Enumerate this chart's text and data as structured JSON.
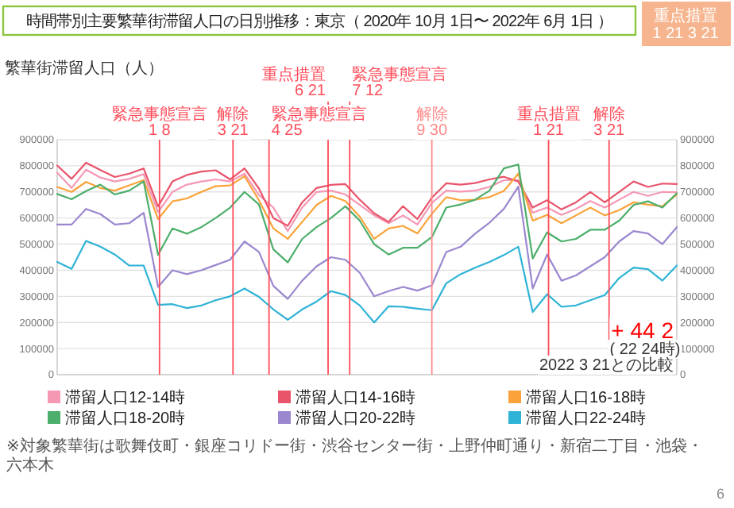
{
  "chart_data": {
    "type": "line",
    "title": "時間帯別主要繁華街滞留人口の日別推移：東京（ 2020年 10月 1日〜 2022年 6月 1日 ）",
    "ylabel": "繁華街滞留人口（人）",
    "categories": [
      null,
      null,
      null,
      null,
      null,
      null,
      null,
      null,
      null,
      null,
      null,
      null,
      null,
      null,
      null,
      null,
      null,
      null,
      null,
      null,
      null,
      null,
      null,
      null,
      null,
      null,
      null,
      null,
      null,
      null,
      null,
      null,
      null,
      null,
      null,
      null,
      null,
      null,
      null,
      null,
      null,
      null,
      null,
      null
    ],
    "ylim": [
      0,
      900000
    ],
    "yticks": [
      0,
      100000,
      200000,
      300000,
      400000,
      500000,
      600000,
      700000,
      800000,
      900000
    ],
    "y2lim": [
      0,
      900000
    ],
    "y2ticks": [
      0,
      100000,
      200000,
      300000,
      400000,
      500000,
      600000,
      700000,
      800000,
      900000
    ],
    "series": [
      {
        "name": "滞留人口12-14時",
        "color": "#f598b4",
        "values": [
          774000,
          715000,
          785000,
          755000,
          740000,
          750000,
          768000,
          623000,
          700000,
          728000,
          740000,
          748000,
          740000,
          770000,
          688000,
          640000,
          550000,
          640000,
          700000,
          705000,
          690000,
          650000,
          610000,
          580000,
          610000,
          575000,
          658000,
          705000,
          701000,
          705000,
          719000,
          745000,
          745000,
          620000,
          640000,
          612000,
          635000,
          665000,
          640000,
          670000,
          700000,
          685000,
          700000,
          699000
        ]
      },
      {
        "name": "滞留人口14-16時",
        "color": "#e9546b",
        "values": [
          801000,
          750000,
          812000,
          784000,
          757000,
          770000,
          790000,
          644000,
          740000,
          765000,
          778000,
          783000,
          748000,
          790000,
          713000,
          600000,
          570000,
          660000,
          715000,
          727000,
          730000,
          670000,
          618000,
          585000,
          645000,
          596000,
          678000,
          733000,
          728000,
          734000,
          748000,
          758000,
          740000,
          640000,
          668000,
          633000,
          660000,
          700000,
          660000,
          700000,
          740000,
          719000,
          732000,
          730000
        ]
      },
      {
        "name": "滞留人口16-18時",
        "color": "#f9a33a",
        "values": [
          719000,
          700000,
          738000,
          715000,
          705000,
          725000,
          745000,
          596000,
          664000,
          675000,
          700000,
          722000,
          725000,
          760000,
          668000,
          560000,
          520000,
          585000,
          650000,
          685000,
          665000,
          605000,
          520000,
          560000,
          570000,
          541000,
          616000,
          680000,
          668000,
          670000,
          680000,
          704000,
          770000,
          590000,
          612000,
          580000,
          610000,
          640000,
          610000,
          630000,
          660000,
          651000,
          645000,
          690000
        ]
      },
      {
        "name": "滞留人口18-20時",
        "color": "#4cae6b",
        "values": [
          692000,
          672000,
          703000,
          728000,
          690000,
          705000,
          740000,
          459000,
          560000,
          540000,
          565000,
          600000,
          640000,
          700000,
          652000,
          480000,
          430000,
          520000,
          565000,
          600000,
          645000,
          590000,
          500000,
          460000,
          486000,
          486000,
          527000,
          640000,
          652000,
          670000,
          705000,
          790000,
          805000,
          445000,
          545000,
          510000,
          520000,
          555000,
          555000,
          590000,
          650000,
          664000,
          640000,
          695000
        ]
      },
      {
        "name": "滞留人口20-22時",
        "color": "#9b87cf",
        "values": [
          575000,
          575000,
          635000,
          615000,
          575000,
          580000,
          620000,
          336000,
          400000,
          385000,
          400000,
          420000,
          440000,
          510000,
          470000,
          340000,
          290000,
          360000,
          415000,
          450000,
          440000,
          390000,
          300000,
          320000,
          336000,
          322000,
          342000,
          470000,
          490000,
          540000,
          582000,
          635000,
          720000,
          330000,
          460000,
          360000,
          380000,
          415000,
          450000,
          510000,
          550000,
          541000,
          500000,
          565000
        ]
      },
      {
        "name": "滞留人口22-24時",
        "color": "#2eb3d6",
        "values": [
          432000,
          405000,
          512000,
          490000,
          460000,
          418000,
          418000,
          267000,
          270000,
          255000,
          265000,
          285000,
          300000,
          330000,
          298000,
          250000,
          210000,
          250000,
          280000,
          320000,
          305000,
          265000,
          200000,
          262000,
          260000,
          253000,
          247000,
          350000,
          385000,
          410000,
          432000,
          458000,
          490000,
          240000,
          308000,
          260000,
          265000,
          285000,
          305000,
          370000,
          410000,
          404000,
          360000,
          418000
        ]
      }
    ],
    "annotations": [
      "重点措置\n1 21 3 21",
      "+ 44 2",
      "( 22 24時)",
      "2022 3 21との比較",
      "※対象繁華街は歌舞伎町・銀座コリドー街・渋谷センター街・上野仲町通り・新宿二丁目・池袋・六本木",
      "6",
      "緊急事態宣言\n1 8",
      "解除\n3 21",
      "緊急事態宣言\n4 25",
      "重点措置\n6 21",
      "緊急事態宣言\n7 12",
      "解除\n9 30",
      "重点措置\n1 21",
      "解除\n3 21"
    ],
    "grid": "y",
    "legend": "bottom",
    "tick_labels": "y"
  }
}
